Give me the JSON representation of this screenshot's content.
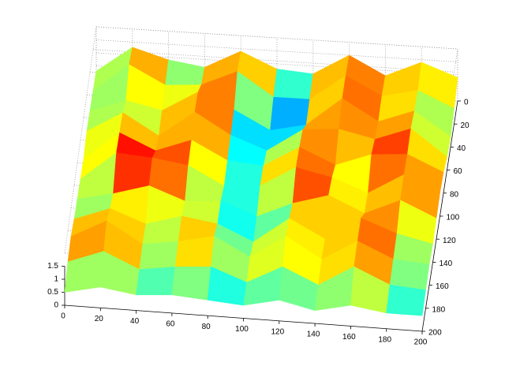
{
  "chart_data": {
    "type": "surface",
    "x": [
      0,
      20,
      40,
      60,
      80,
      100,
      120,
      140,
      160,
      180,
      200
    ],
    "y": [
      0,
      20,
      40,
      60,
      80,
      100,
      120,
      140,
      160,
      180,
      200
    ],
    "z": [
      [
        0.3,
        1.3,
        0.9,
        0.7,
        1.4,
        0.8,
        0.7,
        1.5,
        0.8,
        1.4,
        0.9
      ],
      [
        0.4,
        1.5,
        0.8,
        0.9,
        1.5,
        0.6,
        0.6,
        1.6,
        0.9,
        1.2,
        0.6
      ],
      [
        0.5,
        1.0,
        0.7,
        1.5,
        0.9,
        0.2,
        0.5,
        1.6,
        0.8,
        1.3,
        0.4
      ],
      [
        0.6,
        1.4,
        0.6,
        1.6,
        0.8,
        0.3,
        1.2,
        1.3,
        1.0,
        1.5,
        0.5
      ],
      [
        0.4,
        1.5,
        0.9,
        1.4,
        0.7,
        0.6,
        1.4,
        0.8,
        1.3,
        1.4,
        0.8
      ],
      [
        0.5,
        1.6,
        1.5,
        1.3,
        0.6,
        0.7,
        1.5,
        1.2,
        0.7,
        1.5,
        0.9
      ],
      [
        0.6,
        0.9,
        1.3,
        0.8,
        0.9,
        0.4,
        1.0,
        1.4,
        0.8,
        1.4,
        0.8
      ],
      [
        0.7,
        1.2,
        0.7,
        1.1,
        0.9,
        0.3,
        1.3,
        0.6,
        1.5,
        1.0,
        0.7
      ],
      [
        0.9,
        1.6,
        0.8,
        1.0,
        1.3,
        0.6,
        1.5,
        0.7,
        1.5,
        0.9,
        0.8
      ],
      [
        0.8,
        1.3,
        0.7,
        0.9,
        1.0,
        0.5,
        1.2,
        0.6,
        1.4,
        0.8,
        0.7
      ],
      [
        0.5,
        0.8,
        0.6,
        0.7,
        0.6,
        0.5,
        0.8,
        0.5,
        0.8,
        0.6,
        0.6
      ]
    ],
    "xlim": [
      0,
      200
    ],
    "ylim": [
      0,
      200
    ],
    "zlim": [
      0,
      2
    ],
    "xticks": [
      0,
      20,
      40,
      60,
      80,
      100,
      120,
      140,
      160,
      180,
      200
    ],
    "yticks": [
      0,
      20,
      40,
      60,
      80,
      100,
      120,
      140,
      160,
      180,
      200
    ],
    "zticks": [
      0,
      0.5,
      1,
      1.5
    ],
    "colormap": "jet",
    "grid": true
  }
}
